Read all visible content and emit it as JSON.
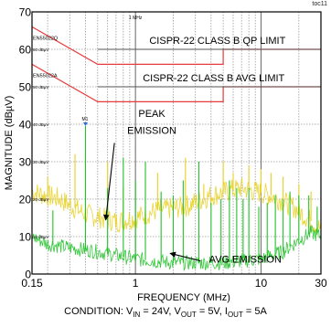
{
  "corner_code": "toc11",
  "condition": {
    "prefix": "CONDITION: V",
    "vin_sub": "IN",
    "vin_val": " = 24V, V",
    "vout_sub": "OUT",
    "vout_val": " = 5V, I",
    "iout_sub": "OUT",
    "iout_val": " = 5A"
  },
  "chart_data": {
    "type": "line",
    "title": "",
    "xlabel": "FREQUENCY (MHz)",
    "ylabel": "MAGNITUDE (dBµV)",
    "xscale": "log",
    "xlim": [
      0.15,
      30
    ],
    "ylim": [
      0,
      70
    ],
    "xticks": [
      {
        "value": 0.15,
        "label": "0.15"
      },
      {
        "value": 1,
        "label": "1"
      },
      {
        "value": 10,
        "label": "10"
      },
      {
        "value": 30,
        "label": "30"
      }
    ],
    "yticks": [
      {
        "value": 0,
        "label": "0"
      },
      {
        "value": 10,
        "label": "10"
      },
      {
        "value": 20,
        "label": "20"
      },
      {
        "value": 30,
        "label": "30"
      },
      {
        "value": 40,
        "label": "40"
      },
      {
        "value": 50,
        "label": "50"
      },
      {
        "value": 60,
        "label": "60"
      },
      {
        "value": 70,
        "label": "70"
      }
    ],
    "grid": true,
    "instrument_labels": {
      "marker_1mhz": "1 MHz",
      "ref_qp": "EN55022Q",
      "ref_avg": "EN55022A",
      "level_labels": [
        "60 dBµV",
        "50 dBµV",
        "40 dBµV",
        "30 dBµV",
        "20 dBµV",
        "10 dBµV"
      ],
      "marker_id": "M1"
    },
    "limits": [
      {
        "name": "CISPR-22 CLASS B QP LIMIT",
        "points": [
          [
            0.15,
            66
          ],
          [
            0.5,
            56
          ],
          [
            5,
            56
          ],
          [
            5,
            60
          ],
          [
            30,
            60
          ]
        ],
        "color": "#e83a3a"
      },
      {
        "name": "CISPR-22 CLASS B AVG LIMIT",
        "points": [
          [
            0.15,
            56
          ],
          [
            0.5,
            46
          ],
          [
            5,
            46
          ],
          [
            5,
            50
          ],
          [
            30,
            50
          ]
        ],
        "color": "#e83a3a"
      }
    ],
    "annotations": [
      {
        "text": "CISPR-22 CLASS B QP LIMIT"
      },
      {
        "text": "CISPR-22 CLASS B AVG LIMIT"
      },
      {
        "text": "PEAK",
        "text2": "EMISSION"
      },
      {
        "text": "AVG EMISSION"
      }
    ],
    "series": [
      {
        "name": "PEAK EMISSION",
        "color": "#e8d020",
        "baseline": [
          [
            0.15,
            22
          ],
          [
            0.25,
            20
          ],
          [
            0.4,
            16
          ],
          [
            0.7,
            14
          ],
          [
            1.0,
            15
          ],
          [
            1.5,
            17
          ],
          [
            2.5,
            18
          ],
          [
            4,
            21
          ],
          [
            7,
            23
          ],
          [
            12,
            21
          ],
          [
            18,
            18
          ],
          [
            30,
            12
          ]
        ],
        "peaks": [
          [
            0.2,
            26
          ],
          [
            0.33,
            32
          ],
          [
            0.4,
            24
          ],
          [
            0.6,
            30
          ],
          [
            0.8,
            23
          ],
          [
            1.5,
            27
          ],
          [
            2.5,
            31
          ],
          [
            3.5,
            24
          ],
          [
            5.0,
            30
          ],
          [
            6.0,
            27
          ],
          [
            8.0,
            29
          ],
          [
            10.0,
            28
          ],
          [
            12.0,
            27
          ],
          [
            15.0,
            26
          ],
          [
            20.0,
            24
          ],
          [
            25.0,
            22
          ]
        ]
      },
      {
        "name": "AVG EMISSION",
        "color": "#22c22a",
        "baseline": [
          [
            0.15,
            10
          ],
          [
            0.2,
            8
          ],
          [
            0.3,
            7
          ],
          [
            0.5,
            6
          ],
          [
            0.7,
            5
          ],
          [
            1.0,
            4
          ],
          [
            2.0,
            3
          ],
          [
            5.0,
            3
          ],
          [
            10,
            4
          ],
          [
            15,
            6
          ],
          [
            20,
            9
          ],
          [
            25,
            11
          ],
          [
            30,
            10
          ]
        ],
        "peaks": [
          [
            0.22,
            17
          ],
          [
            0.4,
            39.5
          ],
          [
            0.6,
            23
          ],
          [
            0.8,
            31
          ],
          [
            1.0,
            25
          ],
          [
            1.2,
            30
          ],
          [
            1.6,
            22
          ],
          [
            2.0,
            21
          ],
          [
            2.4,
            25
          ],
          [
            3.2,
            30
          ],
          [
            4.0,
            19
          ],
          [
            4.8,
            20
          ],
          [
            5.6,
            25
          ],
          [
            6.4,
            23
          ],
          [
            7.2,
            20
          ],
          [
            8.0,
            23
          ],
          [
            9.6,
            18
          ],
          [
            11.2,
            19
          ],
          [
            13,
            21
          ],
          [
            15,
            20
          ],
          [
            17,
            22
          ],
          [
            20,
            21
          ],
          [
            24,
            21
          ],
          [
            28,
            18
          ]
        ]
      }
    ]
  }
}
